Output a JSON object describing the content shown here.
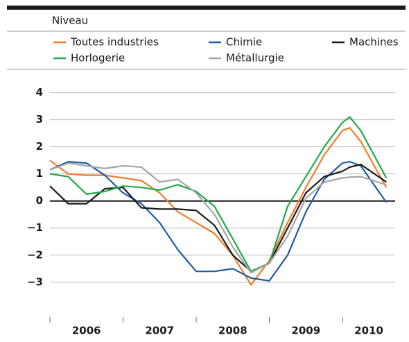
{
  "chart_data": {
    "type": "line",
    "legend_title": "Niveau",
    "x": [
      2006,
      2006.25,
      2006.5,
      2006.75,
      2007,
      2007.25,
      2007.5,
      2007.75,
      2008,
      2008.25,
      2008.5,
      2008.75,
      2009,
      2009.25,
      2009.5,
      2009.75,
      2010,
      2010.1,
      2010.25,
      2010.6
    ],
    "series": [
      {
        "name": "Toutes industries",
        "color": "#f07c2a",
        "values": [
          1.5,
          1.0,
          0.95,
          0.95,
          0.85,
          0.75,
          0.3,
          -0.4,
          -0.8,
          -1.2,
          -2.0,
          -3.1,
          -2.2,
          -0.8,
          0.5,
          1.7,
          2.6,
          2.7,
          2.2,
          0.5
        ]
      },
      {
        "name": "Chimie",
        "color": "#1f5aa6",
        "values": [
          1.15,
          1.45,
          1.4,
          0.95,
          0.3,
          -0.1,
          -0.8,
          -1.8,
          -2.6,
          -2.6,
          -2.5,
          -2.85,
          -2.95,
          -2.0,
          -0.4,
          0.8,
          1.4,
          1.45,
          1.3,
          -0.05
        ]
      },
      {
        "name": "Machines",
        "color": "#1a1a1a",
        "values": [
          0.55,
          -0.1,
          -0.1,
          0.45,
          0.5,
          -0.25,
          -0.3,
          -0.3,
          -0.35,
          -0.9,
          -2.0,
          -2.6,
          -2.3,
          -1.0,
          0.3,
          0.9,
          1.1,
          1.25,
          1.35,
          0.7
        ]
      },
      {
        "name": "Horlogerie",
        "color": "#22a84a",
        "values": [
          1.0,
          0.9,
          0.25,
          0.35,
          0.55,
          0.5,
          0.4,
          0.6,
          0.35,
          -0.2,
          -1.4,
          -2.6,
          -2.3,
          -0.2,
          0.9,
          2.0,
          2.9,
          3.1,
          2.6,
          0.85
        ]
      },
      {
        "name": "Métallurgie",
        "color": "#a6a6a6",
        "values": [
          1.15,
          1.4,
          1.3,
          1.2,
          1.3,
          1.25,
          0.7,
          0.8,
          0.3,
          -0.5,
          -1.7,
          -2.65,
          -2.3,
          -1.3,
          0.1,
          0.7,
          0.85,
          0.88,
          0.9,
          0.6
        ]
      }
    ],
    "xlim": [
      2006,
      2010.72
    ],
    "xticks": [
      2006,
      2007,
      2008,
      2009,
      2010
    ],
    "ylim": [
      -3.8,
      4.4
    ],
    "yticks": [
      {
        "value": -3,
        "label": "−3"
      },
      {
        "value": -2,
        "label": "−2"
      },
      {
        "value": -1,
        "label": "−1"
      },
      0,
      1,
      2,
      3,
      4
    ],
    "grid": true
  }
}
